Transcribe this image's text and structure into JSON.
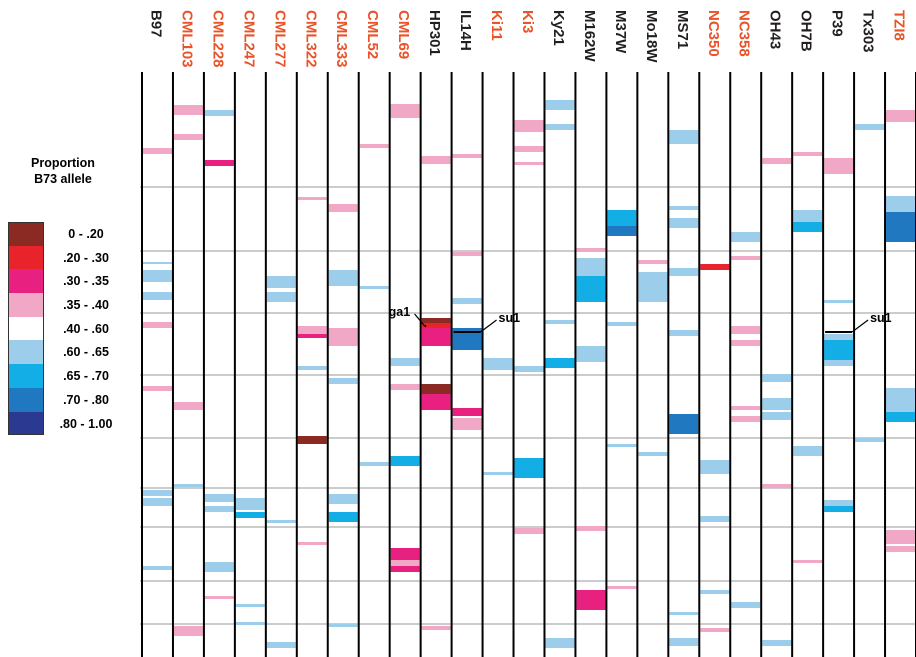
{
  "legend": {
    "title_line1": "Proportion",
    "title_line2": "B73 allele",
    "bins": [
      {
        "label": "0 - .20",
        "color": "#8b2a22"
      },
      {
        "label": ".20 - .30",
        "color": "#e8232c"
      },
      {
        "label": ".30 - .35",
        "color": "#e8207f"
      },
      {
        "label": ".35 - .40",
        "color": "#f1a7c6"
      },
      {
        "label": ".40 - .60",
        "color": "#ffffff"
      },
      {
        "label": ".60 - .65",
        "color": "#9ccdea"
      },
      {
        "label": ".65 - .70",
        "color": "#14aee6"
      },
      {
        "label": ".70 - .80",
        "color": "#1f78c0"
      },
      {
        "label": ".80 - 1.00",
        "color": "#2b3990"
      }
    ]
  },
  "colors": {
    "label_orange": "#e8532a",
    "label_black": "#231f20",
    "grid": "#9a9a9a",
    "column_line": "#000000"
  },
  "chart_data": {
    "type": "heatmap",
    "x_categories": [
      {
        "name": "B97",
        "orange": false
      },
      {
        "name": "CML103",
        "orange": true
      },
      {
        "name": "CML228",
        "orange": true
      },
      {
        "name": "CML247",
        "orange": true
      },
      {
        "name": "CML277",
        "orange": true
      },
      {
        "name": "CML322",
        "orange": true
      },
      {
        "name": "CML333",
        "orange": true
      },
      {
        "name": "CML52",
        "orange": true
      },
      {
        "name": "CML69",
        "orange": true
      },
      {
        "name": "HP301",
        "orange": false
      },
      {
        "name": "IL14H",
        "orange": false
      },
      {
        "name": "Ki11",
        "orange": true
      },
      {
        "name": "Ki3",
        "orange": true
      },
      {
        "name": "Ky21",
        "orange": false
      },
      {
        "name": "M162W",
        "orange": false
      },
      {
        "name": "M37W",
        "orange": false
      },
      {
        "name": "Mo18W",
        "orange": false
      },
      {
        "name": "MS71",
        "orange": false
      },
      {
        "name": "NC350",
        "orange": true
      },
      {
        "name": "NC358",
        "orange": true
      },
      {
        "name": "OH43",
        "orange": false
      },
      {
        "name": "OH7B",
        "orange": false
      },
      {
        "name": "P39",
        "orange": false
      },
      {
        "name": "Tx303",
        "orange": false
      },
      {
        "name": "TZI8",
        "orange": true
      }
    ],
    "value_bins": [
      "0 - .20",
      ".20 - .30",
      ".30 - .35",
      ".35 - .40",
      ".40 - .60",
      ".60 - .65",
      ".65 - .70",
      ".70 - .80",
      ".80 - 1.00"
    ],
    "markers": [
      {
        "label": "ga1",
        "column": "HP301",
        "side": "left"
      },
      {
        "label": "su1",
        "column": "IL14H",
        "side": "right"
      },
      {
        "label": "su1",
        "column": "P39",
        "side": "right"
      }
    ]
  }
}
